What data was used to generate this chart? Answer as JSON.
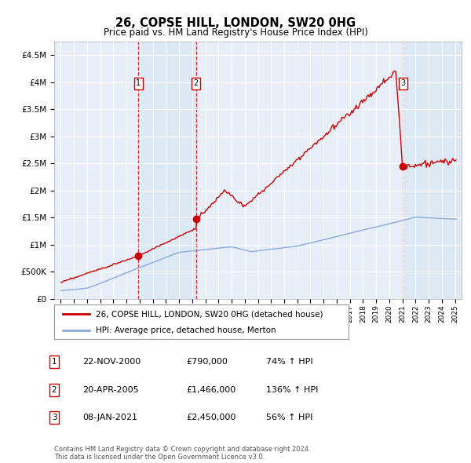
{
  "title": "26, COPSE HILL, LONDON, SW20 0HG",
  "subtitle": "Price paid vs. HM Land Registry's House Price Index (HPI)",
  "sale_dates_num": [
    2000.896,
    2005.302,
    2021.025
  ],
  "sale_prices": [
    790000,
    1466000,
    2450000
  ],
  "sale_labels": [
    "1",
    "2",
    "3"
  ],
  "sale_info": [
    {
      "label": "1",
      "date": "22-NOV-2000",
      "price": "£790,000",
      "change": "74% ↑ HPI"
    },
    {
      "label": "2",
      "date": "20-APR-2005",
      "price": "£1,466,000",
      "change": "136% ↑ HPI"
    },
    {
      "label": "3",
      "date": "08-JAN-2021",
      "price": "£2,450,000",
      "change": "56% ↑ HPI"
    }
  ],
  "legend_line1": "26, COPSE HILL, LONDON, SW20 0HG (detached house)",
  "legend_line2": "HPI: Average price, detached house, Merton",
  "footer": "Contains HM Land Registry data © Crown copyright and database right 2024.\nThis data is licensed under the Open Government Licence v3.0.",
  "price_line_color": "#cc0000",
  "hpi_line_color": "#88aadd",
  "shade_color": "#dde8f5",
  "ylim": [
    0,
    4750000
  ],
  "yticks": [
    0,
    500000,
    1000000,
    1500000,
    2000000,
    2500000,
    3000000,
    3500000,
    4000000,
    4500000
  ],
  "ytick_labels": [
    "£0",
    "£500K",
    "£1M",
    "£1.5M",
    "£2M",
    "£2.5M",
    "£3M",
    "£3.5M",
    "£4M",
    "£4.5M"
  ],
  "xlim": [
    1994.5,
    2025.5
  ],
  "background_color": "#e8eef8"
}
